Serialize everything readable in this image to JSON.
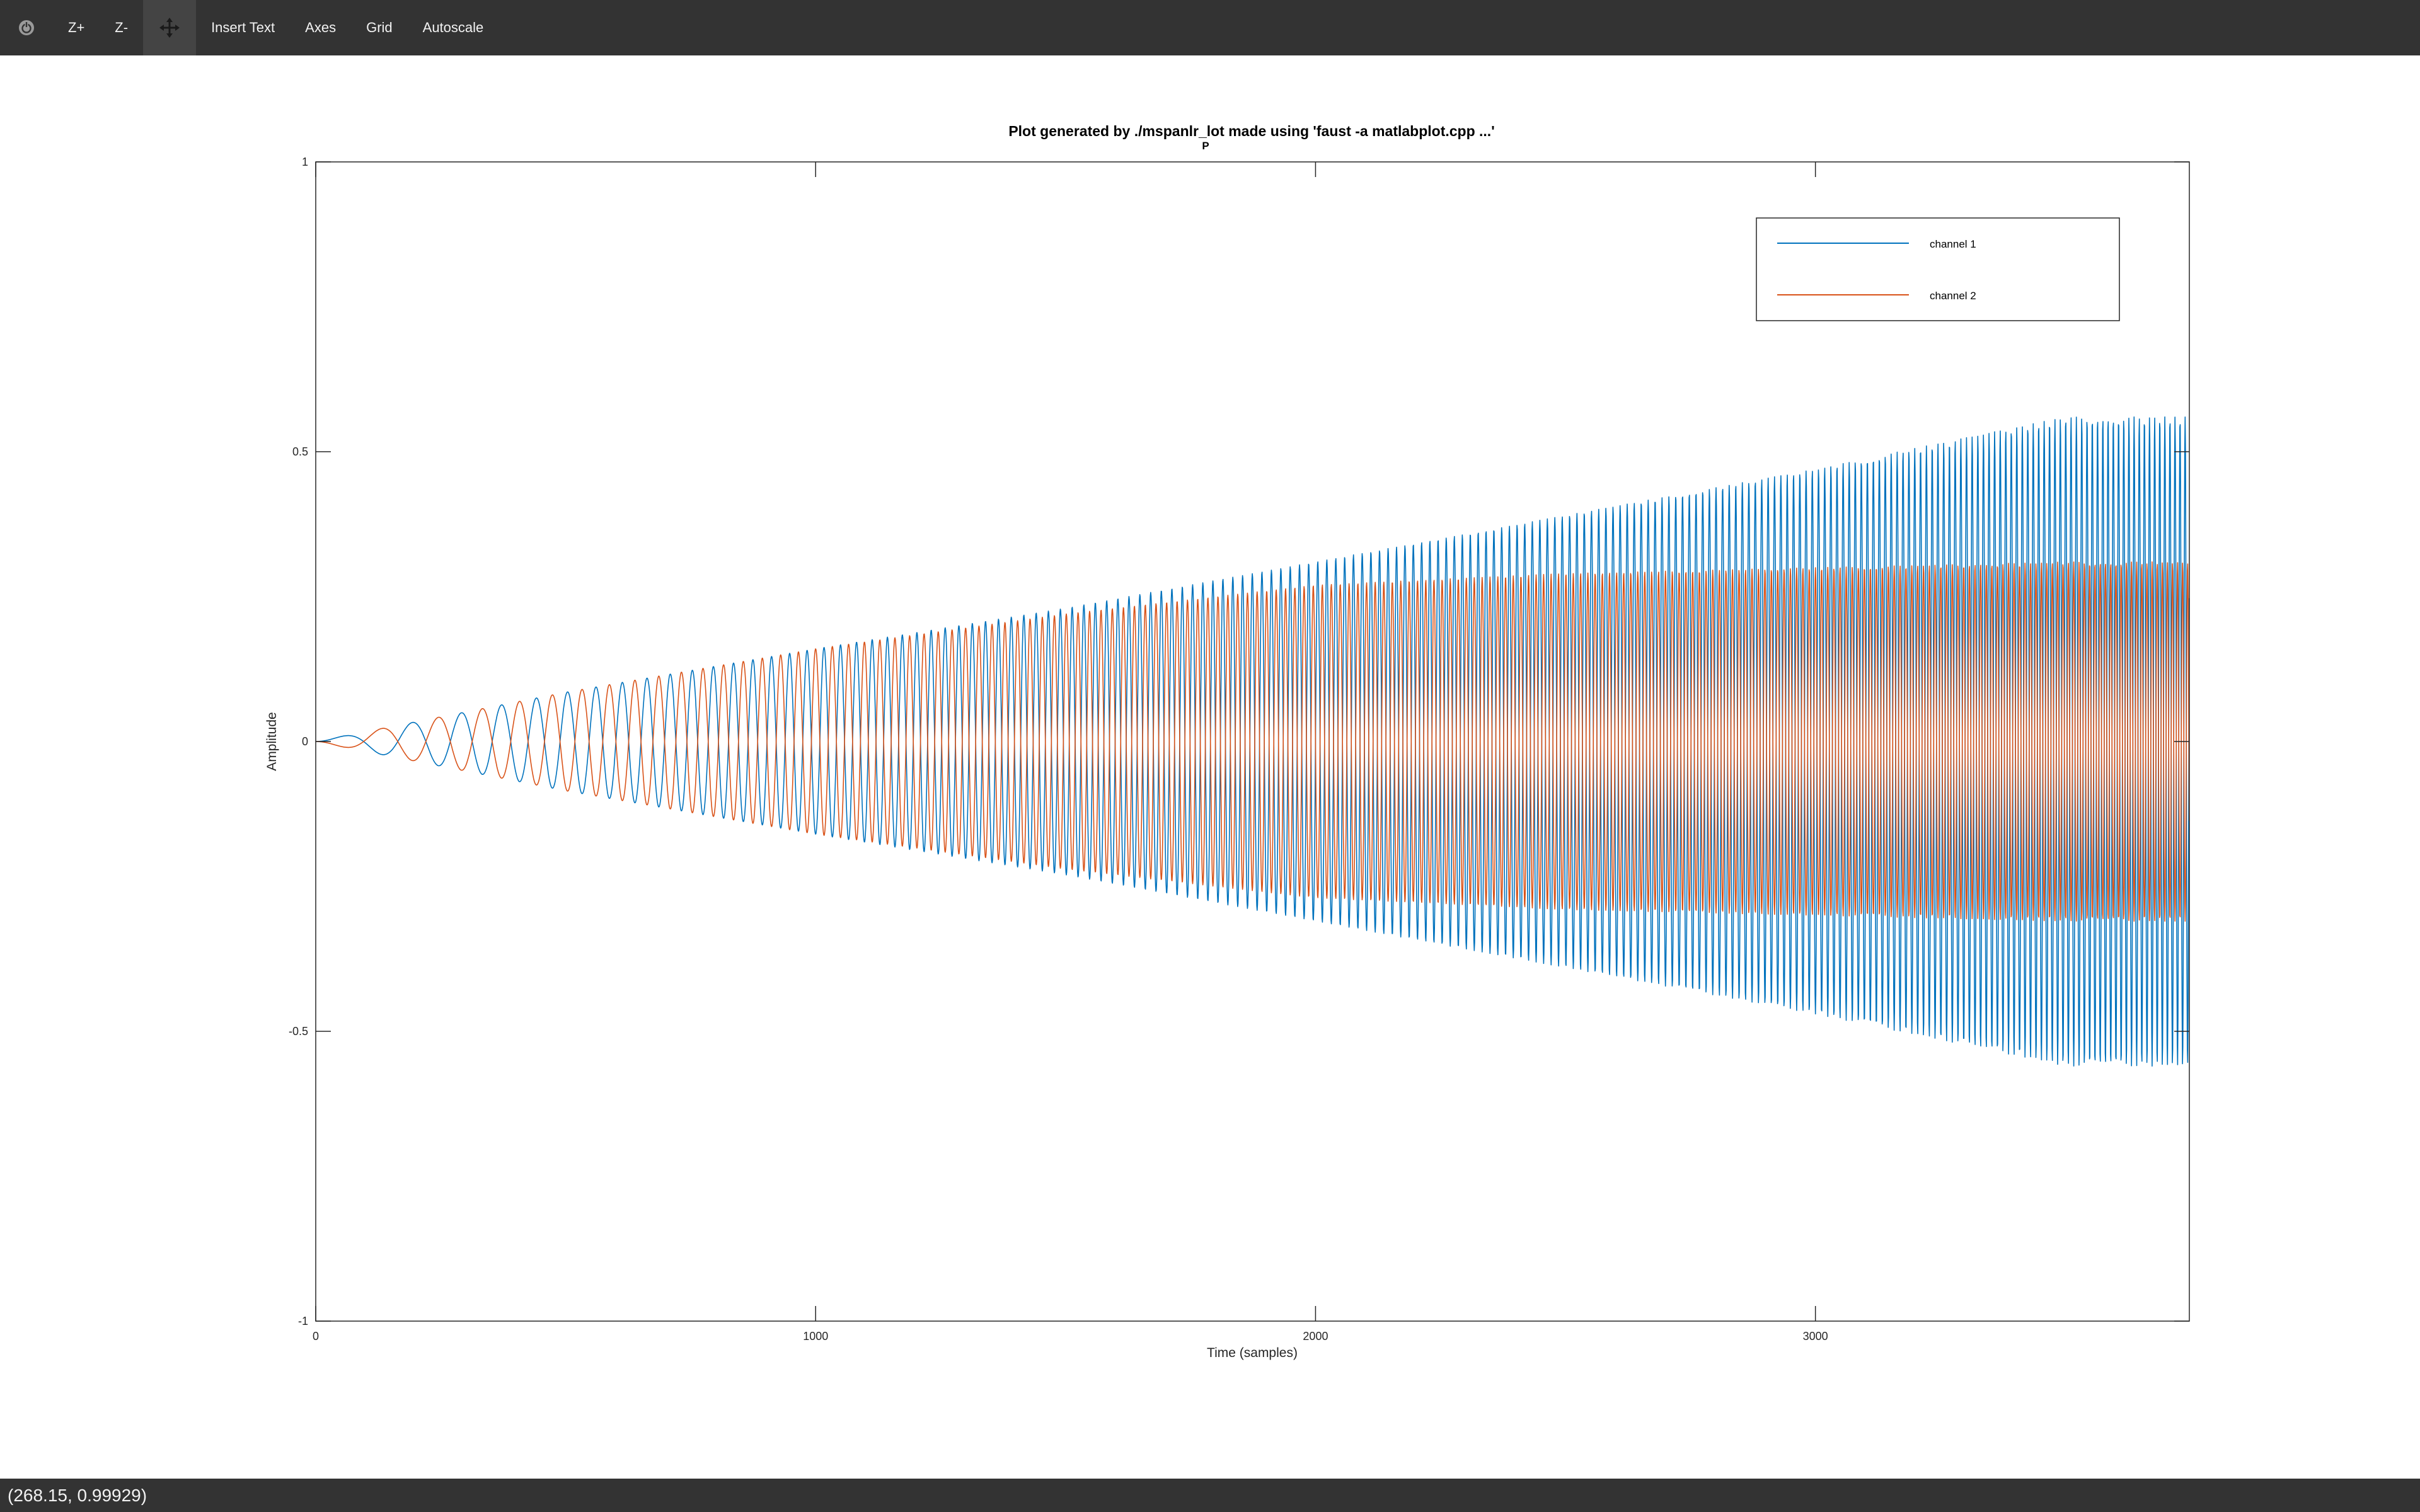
{
  "toolbar": {
    "items": [
      {
        "name": "reset",
        "icon": "power-icon"
      },
      {
        "name": "zoom-in",
        "label": "Z+"
      },
      {
        "name": "zoom-out",
        "label": "Z-"
      },
      {
        "name": "pan",
        "icon": "move-icon",
        "active": true
      },
      {
        "name": "insert-text",
        "label": "Insert Text"
      },
      {
        "name": "axes",
        "label": "Axes"
      },
      {
        "name": "grid",
        "label": "Grid"
      },
      {
        "name": "autoscale",
        "label": "Autoscale"
      }
    ]
  },
  "status": {
    "coordinates": "(268.15, 0.99929)"
  },
  "colors": {
    "toolbar_bg": "#333333",
    "channel1": "#0072bd",
    "channel2": "#d95319"
  },
  "chart_data": {
    "type": "line",
    "title": "Plot generated by ./mspanlr_lot made using 'faust -a matlabplot.cpp ...'",
    "title_fragment": "P",
    "xlabel": "Time (samples)",
    "ylabel": "Amplitude",
    "xlim": [
      0,
      3748
    ],
    "ylim": [
      -1,
      1
    ],
    "xticks": [
      0,
      1000,
      2000,
      3000
    ],
    "yticks": [
      -1,
      -0.5,
      0,
      0.5,
      1
    ],
    "legend_position": "top-right",
    "series": [
      {
        "name": "channel 1",
        "color": "#0072bd",
        "envelope": {
          "x": [
            0,
            500,
            1000,
            1500,
            2000,
            2500,
            3000,
            3500,
            3748
          ],
          "y": [
            0,
            0.085,
            0.16,
            0.23,
            0.31,
            0.39,
            0.47,
            0.56,
            0.56
          ]
        }
      },
      {
        "name": "channel 2",
        "color": "#d95319",
        "envelope": {
          "x": [
            0,
            500,
            1000,
            1500,
            2000,
            2500,
            3000,
            3500,
            3748
          ],
          "y": [
            0,
            0.085,
            0.16,
            0.22,
            0.27,
            0.29,
            0.3,
            0.31,
            0.31
          ]
        }
      }
    ]
  }
}
